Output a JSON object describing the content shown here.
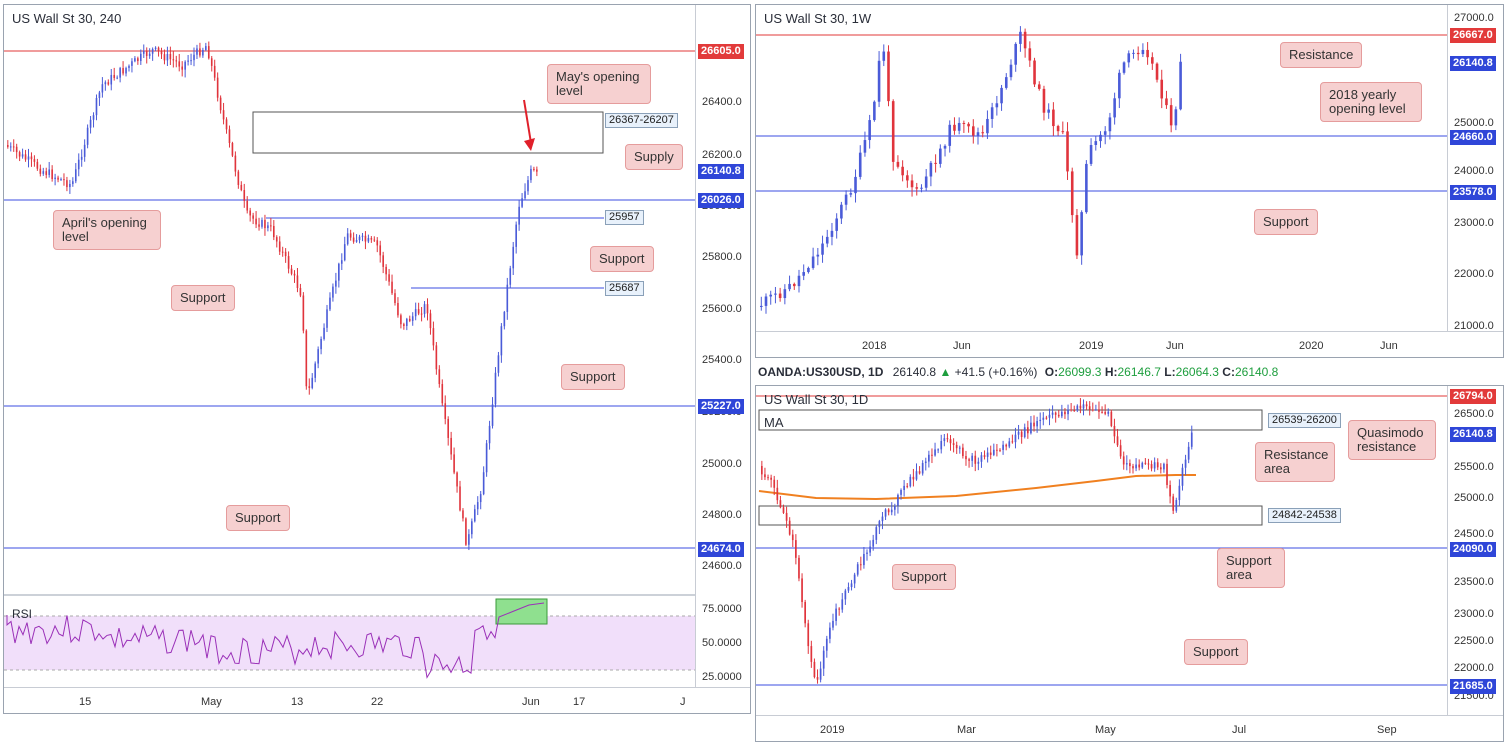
{
  "colors": {
    "bull": "#4a5bd8",
    "bear": "#e0343c",
    "support": "#3b4ce0",
    "resistance": "#e23a3a",
    "ma": "#f08020",
    "rsi": "#9a30b8",
    "callout": "#f6d0d0",
    "rsiBand": "#f1dffa"
  },
  "panel_a": {
    "title": "US Wall St 30, 240",
    "prices": [
      "26400.0",
      "26200.0",
      "26000.0",
      "25800.0",
      "25600.0",
      "25400.0",
      "25200.0",
      "25000.0",
      "24800.0",
      "24600.0"
    ],
    "xlabels": [
      "15",
      "May",
      "13",
      "22",
      "Jun",
      "17",
      "J"
    ],
    "levels": {
      "may_open": "26605.0",
      "last": "26140.8",
      "april_open": "26026.0",
      "s1": "25957",
      "s2": "25687",
      "s3": "25227.0",
      "s4": "24674.0"
    },
    "zone": "26367-26207",
    "callouts": {
      "may": "May's opening level",
      "supply": "Supply",
      "april": "April's opening level",
      "sup_a": "Support",
      "sup_b": "Support",
      "sup_c": "Support",
      "sup_d": "Support"
    },
    "rsi": {
      "label": "RSI",
      "ticks": [
        "75.0000",
        "50.0000",
        "25.0000"
      ]
    }
  },
  "panel_b": {
    "title": "US Wall St 30, 1W",
    "prices": [
      "27000.0",
      "25000.0",
      "24000.0",
      "23000.0",
      "22000.0",
      "21000.0"
    ],
    "xlabels": [
      "2018",
      "Jun",
      "2019",
      "Jun",
      "2020",
      "Jun"
    ],
    "levels": {
      "resistance": "26667.0",
      "last": "26140.8",
      "yearly": "24660.0",
      "support": "23578.0"
    },
    "callouts": {
      "resistance": "Resistance",
      "yearly": "2018 yearly opening level",
      "support": "Support"
    }
  },
  "legend": {
    "symbol": "OANDA:US30USD, 1D",
    "last": "26140.8",
    "change": "+41.5 (+0.16%)",
    "o_label": "O:",
    "o": "26099.3",
    "h_label": "H:",
    "h": "26146.7",
    "l_label": "L:",
    "l": "26064.3",
    "c_label": "C:",
    "c": "26140.8"
  },
  "panel_c": {
    "title": "US Wall St 30, 1D",
    "ma_label": "MA",
    "prices": [
      "26500.0",
      "25500.0",
      "25000.0",
      "24500.0",
      "23500.0",
      "23000.0",
      "22500.0",
      "22000.0",
      "21500.0"
    ],
    "xlabels": [
      "2019",
      "Mar",
      "May",
      "Jul",
      "Sep"
    ],
    "levels": {
      "qm": "26794.0",
      "last": "26140.8",
      "s1": "24090.0",
      "s2": "21685.0"
    },
    "zones": {
      "res": "26539-26200",
      "sup": "24842-24538"
    },
    "callouts": {
      "qm": "Quasimodo resistance",
      "res": "Resistance area",
      "sup_area": "Support area",
      "sup1": "Support",
      "sup2": "Support"
    }
  }
}
